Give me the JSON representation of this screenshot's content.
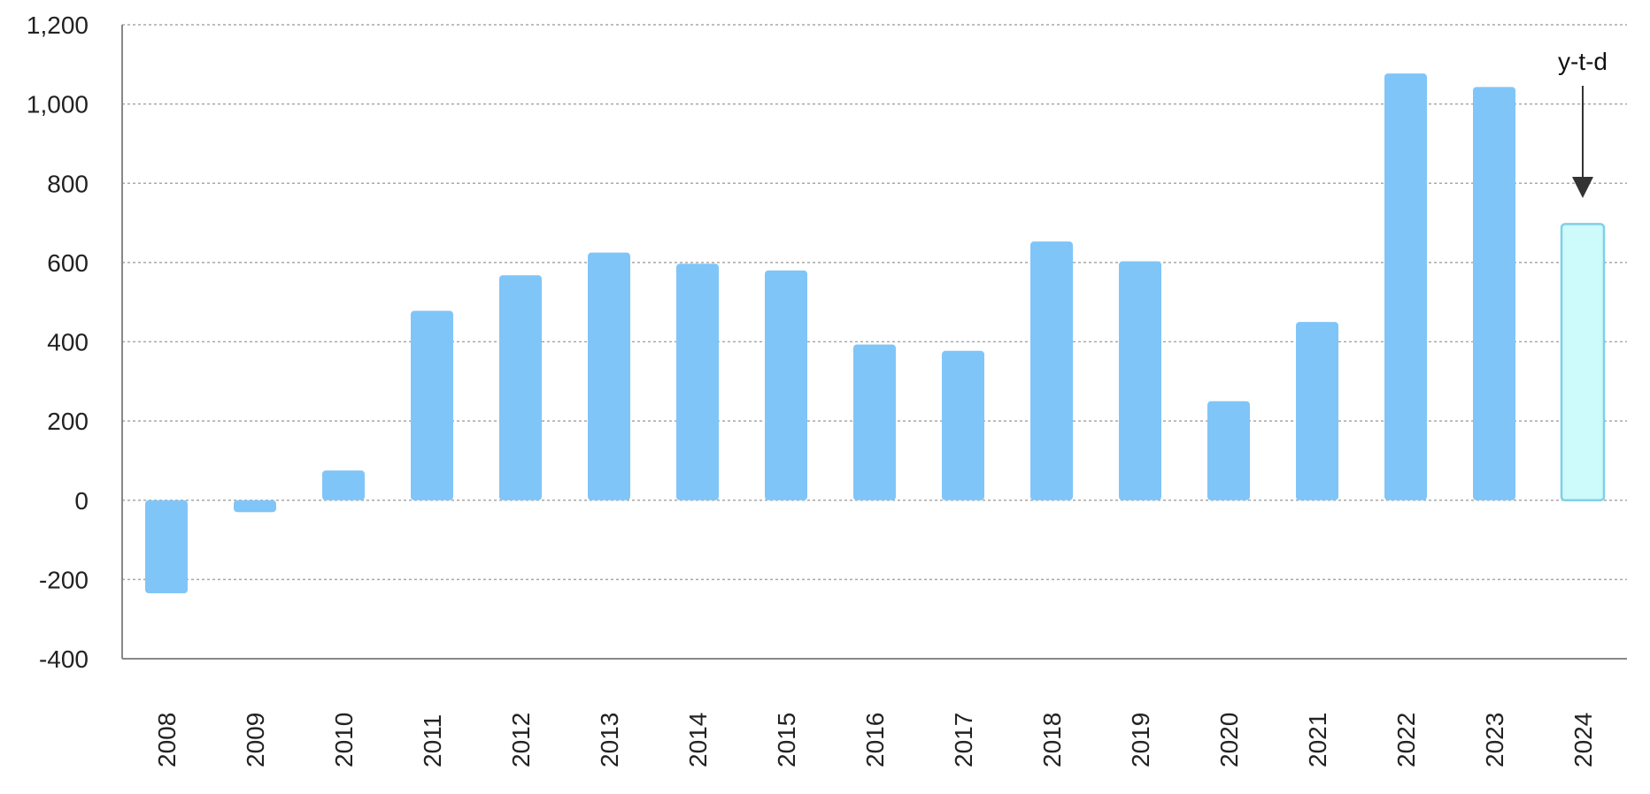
{
  "chart_data": {
    "type": "bar",
    "categories": [
      "2008",
      "2009",
      "2010",
      "2011",
      "2012",
      "2013",
      "2014",
      "2015",
      "2016",
      "2017",
      "2018",
      "2019",
      "2020",
      "2021",
      "2022",
      "2023",
      "2024"
    ],
    "values": [
      -235,
      -30,
      75,
      478,
      568,
      625,
      597,
      580,
      393,
      377,
      653,
      603,
      250,
      450,
      1077,
      1043,
      697
    ],
    "ylim": [
      -400,
      1200
    ],
    "yticks": [
      -400,
      -200,
      0,
      200,
      400,
      600,
      800,
      1000,
      1200
    ],
    "ytick_labels": [
      "-400",
      "-200",
      "0",
      "200",
      "400",
      "600",
      "800",
      "1,000",
      "1,200"
    ],
    "grid": true,
    "title": "",
    "xlabel": "",
    "ylabel": "",
    "colors": {
      "bar": "#80c5f8",
      "highlight_fill": "#cdfafb",
      "highlight_stroke": "#7fd0e8"
    },
    "highlight_category": "2024",
    "annotation": {
      "text": "y-t-d",
      "target": "2024"
    }
  }
}
